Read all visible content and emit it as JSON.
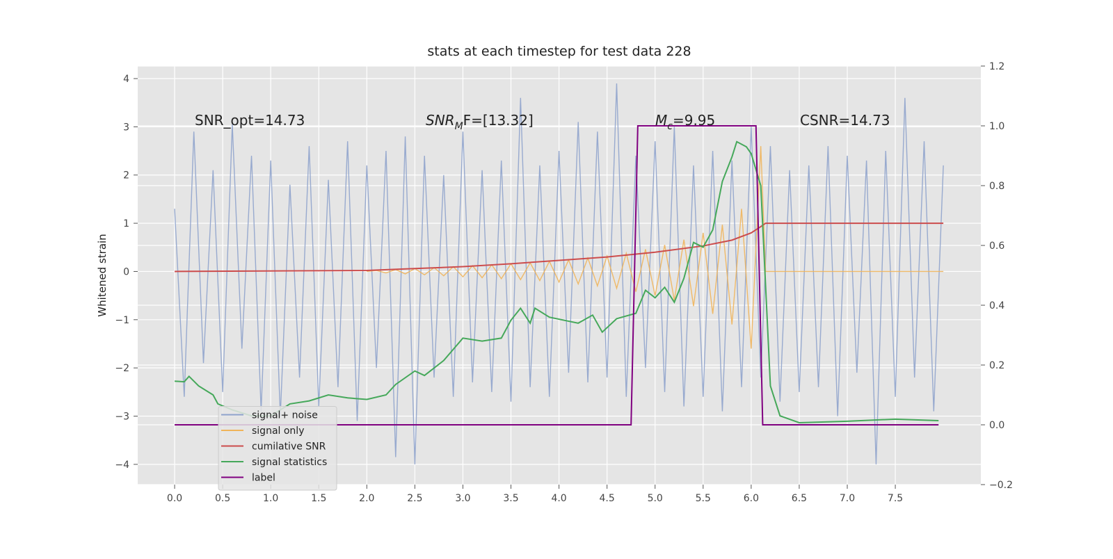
{
  "chart_data": {
    "type": "line",
    "title": "stats at each timestep for test data 228",
    "ylabel": "Whitened strain",
    "annotations": [
      {
        "text": "SNR_opt=14.73"
      },
      {
        "base": "SNR",
        "sub": "M",
        "rest": "F=[13.32]"
      },
      {
        "base": "M",
        "sub": "c",
        "rest": "=9.95"
      },
      {
        "text": "CSNR=14.73"
      }
    ],
    "xlim": [
      -0.384,
      8.39
    ],
    "xticks": [
      {
        "value": 0,
        "label": "0.0"
      },
      0.5,
      {
        "value": 1,
        "label": "1.0"
      },
      1.5,
      {
        "value": 2,
        "label": "2.0"
      },
      2.5,
      {
        "value": 3,
        "label": "3.0"
      },
      3.5,
      {
        "value": 4,
        "label": "4.0"
      },
      4.5,
      {
        "value": 5,
        "label": "5.0"
      },
      5.5,
      {
        "value": 6,
        "label": "6.0"
      },
      6.5,
      {
        "value": 7,
        "label": "7.0"
      },
      7.5
    ],
    "ylim": [
      -4.42,
      4.26
    ],
    "yticks": [
      {
        "value": -4,
        "label": "−4"
      },
      {
        "value": -3,
        "label": "−3"
      },
      {
        "value": -2,
        "label": "−2"
      },
      {
        "value": -1,
        "label": "−1"
      },
      0,
      1,
      2,
      3,
      4
    ],
    "y2lim": [
      -0.2,
      1.2
    ],
    "y2ticks": [
      {
        "value": -0.2,
        "label": "−0.2"
      },
      {
        "value": 0,
        "label": "0.0"
      },
      0.2,
      0.4,
      0.6,
      0.8,
      {
        "value": 1,
        "label": "1.0"
      },
      1.2
    ],
    "grid": true,
    "legend": "lower left",
    "series": [
      {
        "name": "signal+ noise",
        "color": "#8fa3cc",
        "x": [
          0,
          0.1,
          0.2,
          0.3,
          0.4,
          0.5,
          0.6,
          0.7,
          0.8,
          0.9,
          1.0,
          1.1,
          1.2,
          1.3,
          1.4,
          1.5,
          1.6,
          1.7,
          1.8,
          1.9,
          2.0,
          2.1,
          2.2,
          2.3,
          2.4,
          2.5,
          2.6,
          2.7,
          2.8,
          2.9,
          3.0,
          3.1,
          3.2,
          3.3,
          3.4,
          3.5,
          3.6,
          3.7,
          3.8,
          3.9,
          4.0,
          4.1,
          4.2,
          4.3,
          4.4,
          4.5,
          4.6,
          4.7,
          4.8,
          4.9,
          5.0,
          5.1,
          5.2,
          5.3,
          5.4,
          5.5,
          5.6,
          5.7,
          5.8,
          5.9,
          6.0,
          6.1,
          6.2,
          6.3,
          6.4,
          6.5,
          6.6,
          6.7,
          6.8,
          6.9,
          7.0,
          7.1,
          7.2,
          7.3,
          7.4,
          7.5,
          7.6,
          7.7,
          7.8,
          7.9,
          8.0
        ],
        "values": [
          1.3,
          -2.6,
          2.9,
          -1.9,
          2.1,
          -2.5,
          3.05,
          -1.6,
          2.4,
          -2.9,
          2.3,
          -3.0,
          1.8,
          -2.2,
          2.6,
          -2.8,
          1.9,
          -2.4,
          2.7,
          -3.1,
          2.2,
          -2.0,
          2.5,
          -3.85,
          2.8,
          -4.0,
          2.4,
          -2.2,
          2.0,
          -2.6,
          2.9,
          -2.3,
          2.1,
          -2.5,
          2.3,
          -2.7,
          3.6,
          -2.4,
          2.2,
          -2.6,
          2.5,
          -2.1,
          3.1,
          -2.3,
          2.9,
          -2.2,
          3.9,
          -2.6,
          2.4,
          -2.0,
          2.7,
          -2.5,
          3.0,
          -2.8,
          2.2,
          -2.6,
          2.5,
          -2.9,
          2.3,
          -2.4,
          3.0,
          -2.2,
          2.6,
          -2.7,
          2.1,
          -2.5,
          2.2,
          -2.4,
          2.6,
          -3.0,
          2.4,
          -2.1,
          2.3,
          -4.0,
          2.5,
          -2.6,
          3.6,
          -2.2,
          2.7,
          -2.9,
          2.2
        ]
      },
      {
        "name": "signal only",
        "color": "#f0b45a",
        "x": [
          2.0,
          2.1,
          2.2,
          2.3,
          2.4,
          2.5,
          2.6,
          2.7,
          2.8,
          2.9,
          3.0,
          3.1,
          3.2,
          3.3,
          3.4,
          3.5,
          3.6,
          3.7,
          3.8,
          3.9,
          4.0,
          4.1,
          4.2,
          4.3,
          4.4,
          4.5,
          4.6,
          4.7,
          4.8,
          4.9,
          5.0,
          5.1,
          5.2,
          5.3,
          5.4,
          5.5,
          5.6,
          5.7,
          5.8,
          5.9,
          6.0,
          6.1,
          6.15,
          8.0
        ],
        "values": [
          0,
          0.02,
          -0.03,
          0.04,
          -0.05,
          0.06,
          -0.07,
          0.08,
          -0.09,
          0.1,
          -0.11,
          0.12,
          -0.13,
          0.14,
          -0.15,
          0.16,
          -0.17,
          0.18,
          -0.19,
          0.21,
          -0.22,
          0.24,
          -0.26,
          0.28,
          -0.3,
          0.32,
          -0.35,
          0.38,
          -0.42,
          0.46,
          -0.5,
          0.55,
          -0.6,
          0.66,
          -0.72,
          0.8,
          -0.88,
          0.97,
          -1.1,
          1.3,
          -1.6,
          2.6,
          0,
          0
        ]
      },
      {
        "name": "cumilative SNR",
        "color": "#cc4c4c",
        "x": [
          0,
          2.0,
          2.5,
          3.0,
          3.5,
          4.0,
          4.5,
          5.0,
          5.5,
          5.8,
          6.0,
          6.1,
          6.15,
          8.0
        ],
        "values": [
          0,
          0.02,
          0.06,
          0.1,
          0.16,
          0.23,
          0.3,
          0.4,
          0.53,
          0.65,
          0.8,
          0.93,
          1.0,
          1.0
        ]
      },
      {
        "name": "signal statistics",
        "color": "#45a85a",
        "axis": "y2",
        "x": [
          0,
          0.1,
          0.15,
          0.25,
          0.4,
          0.45,
          0.6,
          0.8,
          1.0,
          1.2,
          1.4,
          1.6,
          1.8,
          2.0,
          2.2,
          2.3,
          2.5,
          2.6,
          2.8,
          3.0,
          3.2,
          3.4,
          3.5,
          3.6,
          3.7,
          3.75,
          3.9,
          4.2,
          4.35,
          4.45,
          4.6,
          4.8,
          4.9,
          5.0,
          5.1,
          5.2,
          5.3,
          5.4,
          5.5,
          5.6,
          5.7,
          5.8,
          5.85,
          5.95,
          6.0,
          6.1,
          6.2,
          6.3,
          6.5,
          7.0,
          7.5,
          7.95
        ],
        "values": [
          0.146,
          0.144,
          0.162,
          0.13,
          0.1,
          0.07,
          0.05,
          0.03,
          0.03,
          0.07,
          0.08,
          0.1,
          0.09,
          0.085,
          0.1,
          0.135,
          0.18,
          0.165,
          0.215,
          0.29,
          0.28,
          0.29,
          0.35,
          0.39,
          0.34,
          0.39,
          0.36,
          0.34,
          0.367,
          0.31,
          0.355,
          0.373,
          0.45,
          0.425,
          0.46,
          0.41,
          0.49,
          0.61,
          0.594,
          0.652,
          0.814,
          0.896,
          0.947,
          0.93,
          0.907,
          0.8,
          0.13,
          0.03,
          0.007,
          0.012,
          0.019,
          0.014
        ]
      },
      {
        "name": "label",
        "color": "#800080",
        "axis": "y2",
        "x": [
          0,
          4.75,
          4.82,
          6.05,
          6.12,
          7.95
        ],
        "values": [
          0,
          0,
          1,
          1,
          0,
          0
        ]
      }
    ]
  }
}
